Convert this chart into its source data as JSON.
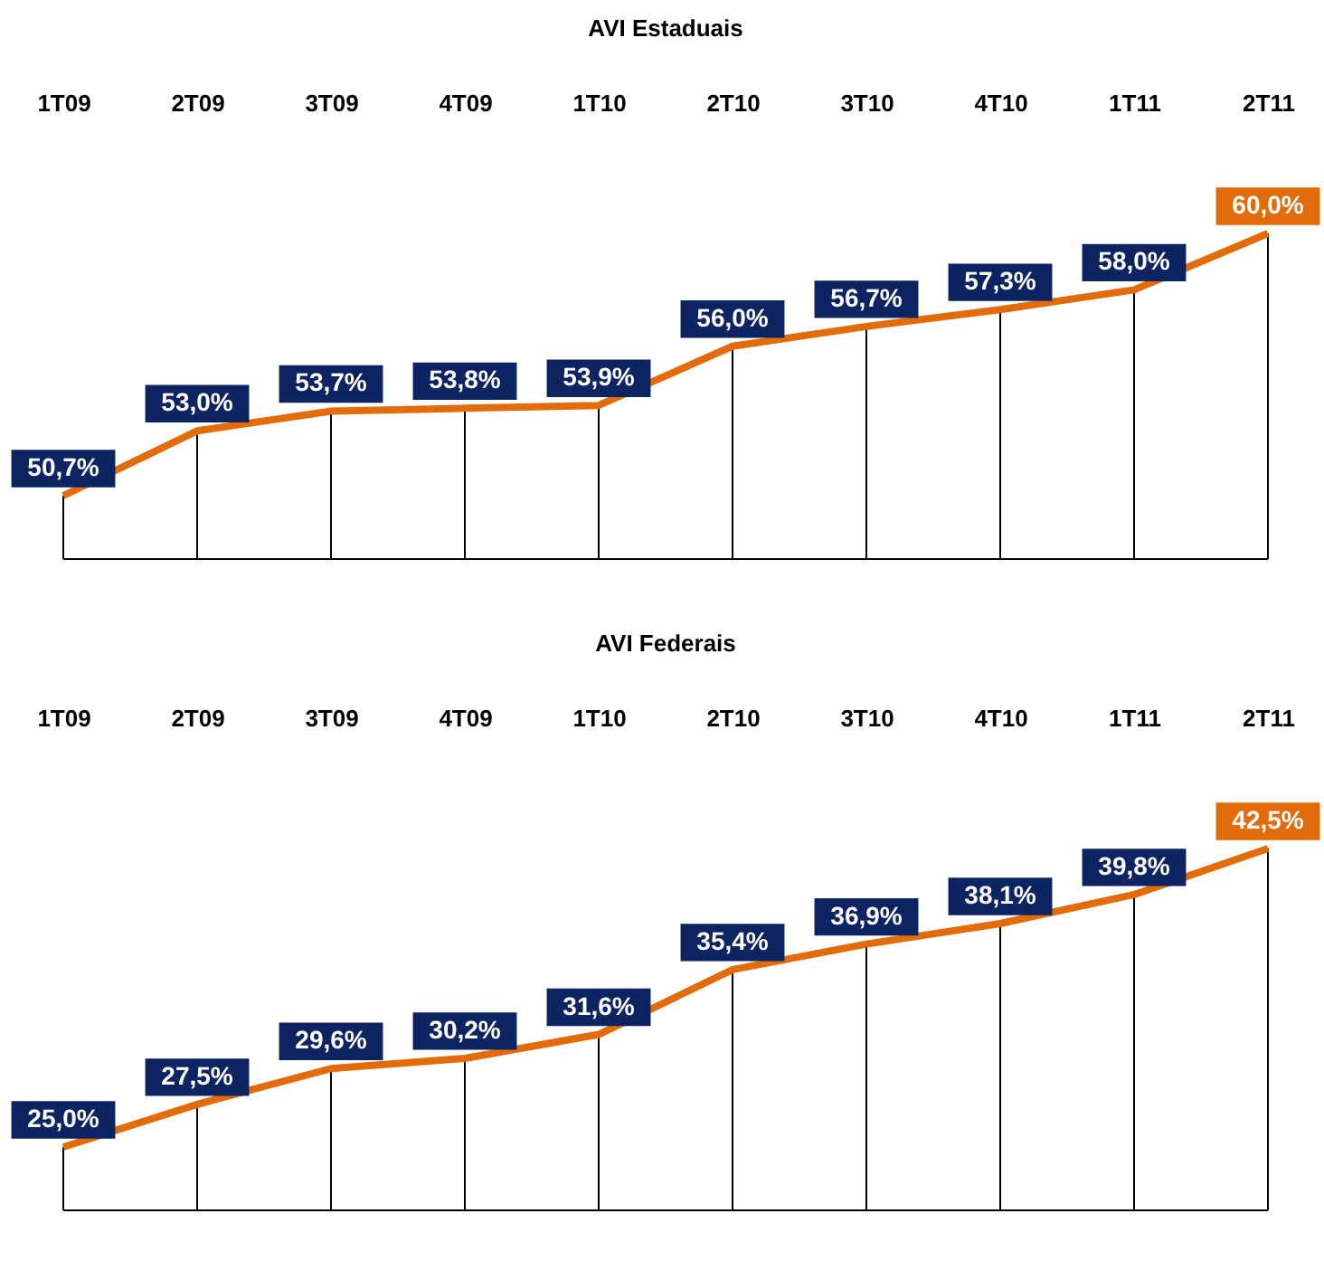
{
  "chart_data": [
    {
      "type": "line",
      "title": "AVI Estaduais",
      "categories": [
        "1T09",
        "2T09",
        "3T09",
        "4T09",
        "1T10",
        "2T10",
        "3T10",
        "4T10",
        "1T11",
        "2T11"
      ],
      "series": [
        {
          "color": "#e36c0a",
          "colors": [
            "#0c2461",
            "#0c2461",
            "#0c2461",
            "#0c2461",
            "#0c2461",
            "#0c2461",
            "#0c2461",
            "#0c2461",
            "#0c2461",
            "#e36c0a"
          ],
          "values": [
            50.7,
            53.0,
            53.7,
            53.8,
            53.9,
            56.0,
            56.7,
            57.3,
            58.0,
            60.0
          ],
          "value_labels": [
            "50,7%",
            "53,0%",
            "53,7%",
            "53,8%",
            "53,9%",
            "56,0%",
            "56,7%",
            "57,3%",
            "58,0%",
            "60,0%"
          ]
        }
      ],
      "grid": "x"
    },
    {
      "type": "line",
      "title": "AVI Federais",
      "categories": [
        "1T09",
        "2T09",
        "3T09",
        "4T09",
        "1T10",
        "2T10",
        "3T10",
        "4T10",
        "1T11",
        "2T11"
      ],
      "series": [
        {
          "color": "#e36c0a",
          "colors": [
            "#0c2461",
            "#0c2461",
            "#0c2461",
            "#0c2461",
            "#0c2461",
            "#0c2461",
            "#0c2461",
            "#0c2461",
            "#0c2461",
            "#e36c0a"
          ],
          "values": [
            25.0,
            27.5,
            29.6,
            30.2,
            31.6,
            35.4,
            36.9,
            38.1,
            39.8,
            42.5
          ],
          "value_labels": [
            "25,0%",
            "27,5%",
            "29,6%",
            "30,2%",
            "31,6%",
            "35,4%",
            "36,9%",
            "38,1%",
            "39,8%",
            "42,5%"
          ]
        }
      ],
      "grid": "x"
    }
  ]
}
